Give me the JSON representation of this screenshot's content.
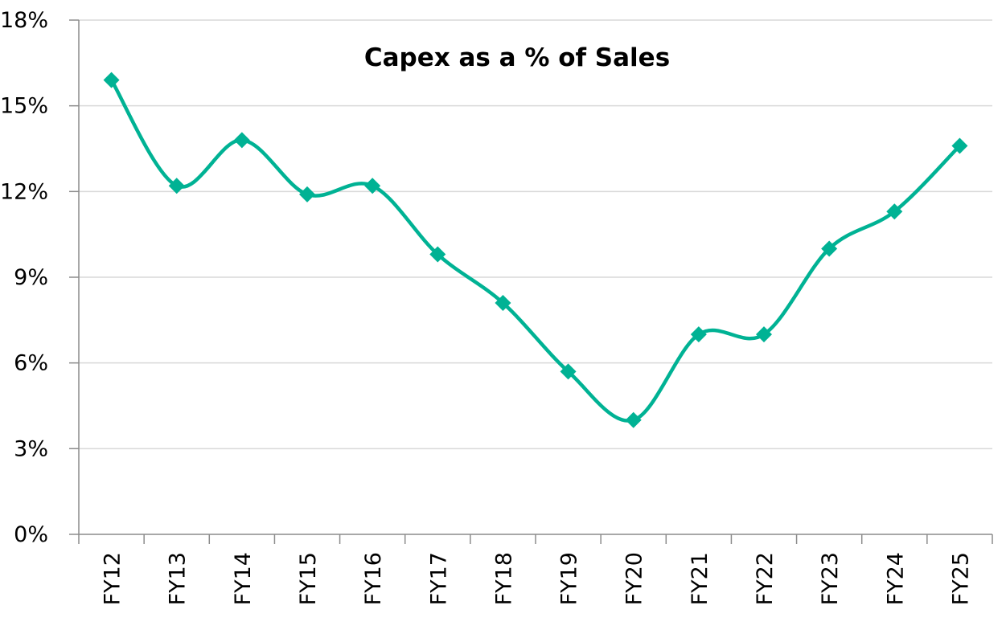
{
  "chart_data": {
    "type": "line",
    "title": "Capex as a % of Sales",
    "xlabel": "",
    "ylabel": "",
    "categories": [
      "FY12",
      "FY13",
      "FY14",
      "FY15",
      "FY16",
      "FY17",
      "FY18",
      "FY19",
      "FY20",
      "FY21",
      "FY22",
      "FY23",
      "FY24",
      "FY25"
    ],
    "series": [
      {
        "values": [
          15.9,
          12.2,
          13.8,
          11.9,
          12.2,
          9.8,
          8.1,
          5.7,
          4.0,
          7.0,
          7.0,
          10.0,
          11.3,
          13.6
        ]
      }
    ],
    "ylim": [
      0,
      18
    ],
    "yticks": [
      0,
      3,
      6,
      9,
      12,
      15,
      18
    ],
    "ytick_labels": [
      "0%",
      "3%",
      "6%",
      "9%",
      "12%",
      "15%",
      "18%"
    ],
    "grid": true,
    "smooth": true,
    "marker": "diamond",
    "color": "#00b294",
    "legend": "none"
  }
}
